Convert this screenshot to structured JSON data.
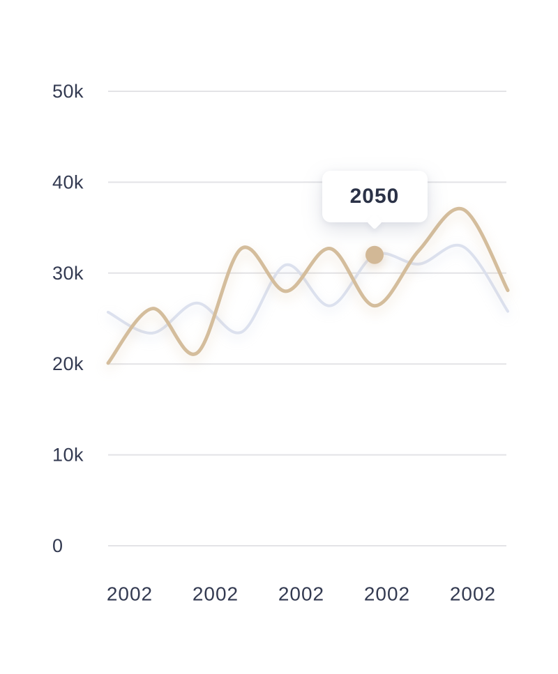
{
  "tooltip": {
    "label": "2050"
  },
  "colors": {
    "primary_line": "#d4bd9c",
    "secondary_line": "#dce1ee",
    "gridline": "#e3e3e6",
    "tick_text": "#333a51",
    "tooltip_text": "#2b3247",
    "highlight_dot": "#d2b896",
    "background": "#ffffff"
  },
  "chart_data": {
    "type": "line",
    "title": "",
    "xlabel": "",
    "ylabel": "",
    "x_tick_labels": [
      "2002",
      "2002",
      "2002",
      "2002",
      "2002"
    ],
    "y_tick_labels": [
      "0",
      "10k",
      "20k",
      "30k",
      "40k",
      "50k"
    ],
    "ylim": [
      0,
      50000
    ],
    "grid": true,
    "legend": "none",
    "series": [
      {
        "name": "secondary",
        "color_key": "secondary_line",
        "values": [
          25700,
          23400,
          26700,
          23500,
          30900,
          26400,
          32000,
          31000,
          32900,
          25800
        ]
      },
      {
        "name": "primary",
        "color_key": "primary_line",
        "values": [
          20100,
          26100,
          21200,
          32700,
          28000,
          32700,
          26400,
          32500,
          37000,
          28100
        ]
      }
    ],
    "highlight": {
      "series": "secondary",
      "index": 6,
      "label": "2050"
    }
  }
}
